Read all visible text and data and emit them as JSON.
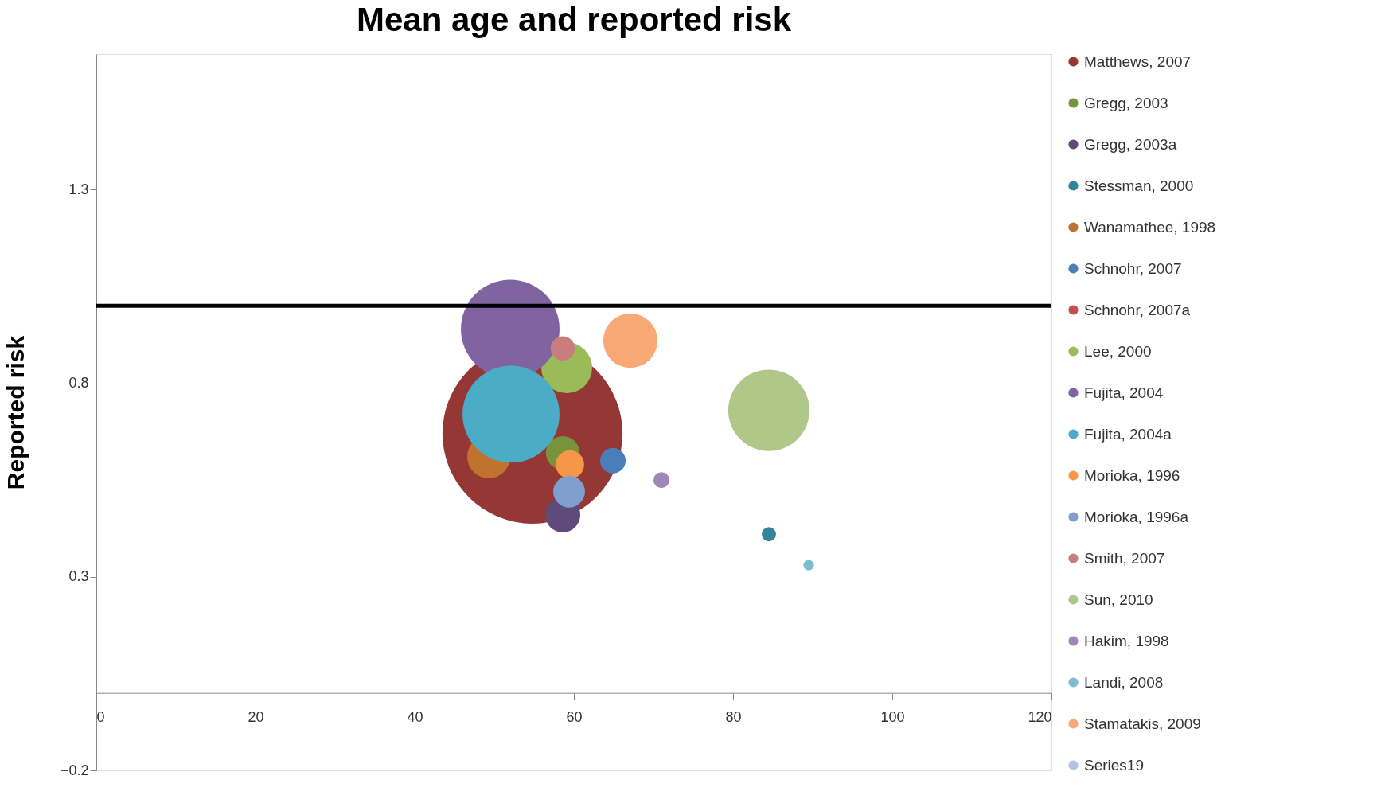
{
  "chart_data": {
    "type": "bubble",
    "title": "Mean age and reported risk",
    "ylabel": "Reported risk",
    "xlim": [
      0,
      120
    ],
    "xticks": [
      0,
      20,
      40,
      60,
      80,
      100,
      120
    ],
    "ylim": [
      -0.2,
      1.65
    ],
    "yticks": [
      -0.2,
      0.3,
      0.8,
      1.3
    ],
    "grid": false,
    "legend": "right",
    "ref_lines": [
      {
        "axis": "y",
        "value": 1.0,
        "color": "#000000"
      }
    ],
    "series": [
      {
        "name": "Matthews, 2007",
        "color": "#953735",
        "x": [
          54.8
        ],
        "values": [
          0.67
        ],
        "sizes": [
          1
        ]
      },
      {
        "name": "Gregg, 2003",
        "color": "#77933c",
        "x": [
          58.6
        ],
        "values": [
          0.62
        ],
        "sizes": [
          0.035
        ]
      },
      {
        "name": "Gregg, 2003a",
        "color": "#604a7b",
        "x": [
          58.6
        ],
        "values": [
          0.46
        ],
        "sizes": [
          0.038
        ]
      },
      {
        "name": "Stessman, 2000",
        "color": "#31859c",
        "x": [
          84.5
        ],
        "values": [
          0.41
        ],
        "sizes": [
          0.0063
        ]
      },
      {
        "name": "Wanamathee, 1998",
        "color": "#c0722f",
        "x": [
          49.3
        ],
        "values": [
          0.61
        ],
        "sizes": [
          0.057
        ]
      },
      {
        "name": "Schnohr, 2007",
        "color": "#4a7ebb",
        "x": [
          64.9
        ],
        "values": [
          0.6
        ],
        "sizes": [
          0.02
        ]
      },
      {
        "name": "Schnohr, 2007a",
        "color": "#c0504d",
        "x": [
          null
        ],
        "values": [
          null
        ],
        "sizes": [
          null
        ]
      },
      {
        "name": "Lee, 2000",
        "color": "#9bbb59",
        "x": [
          59.1
        ],
        "values": [
          0.84
        ],
        "sizes": [
          0.08
        ]
      },
      {
        "name": "Fujita, 2004",
        "color": "#8064a2",
        "x": [
          52.0
        ],
        "values": [
          0.94
        ],
        "sizes": [
          0.3
        ]
      },
      {
        "name": "Fujita, 2004a",
        "color": "#4bacc6",
        "x": [
          52.1
        ],
        "values": [
          0.72
        ],
        "sizes": [
          0.29
        ]
      },
      {
        "name": "Morioka, 1996",
        "color": "#f79646",
        "x": [
          59.5
        ],
        "values": [
          0.59
        ],
        "sizes": [
          0.025
        ]
      },
      {
        "name": "Morioka, 1996a",
        "color": "#7f9fcf",
        "x": [
          59.4
        ],
        "values": [
          0.52
        ],
        "sizes": [
          0.031
        ]
      },
      {
        "name": "Smith, 2007",
        "color": "#c97d7d",
        "x": [
          58.6
        ],
        "values": [
          0.89
        ],
        "sizes": [
          0.018
        ]
      },
      {
        "name": "Sun, 2010",
        "color": "#afc788",
        "x": [
          84.5
        ],
        "values": [
          0.73
        ],
        "sizes": [
          0.204
        ]
      },
      {
        "name": "Hakim, 1998",
        "color": "#9c89b8",
        "x": [
          71.0
        ],
        "values": [
          0.55
        ],
        "sizes": [
          0.0078
        ]
      },
      {
        "name": "Landi, 2008",
        "color": "#7cbdd2",
        "x": [
          89.5
        ],
        "values": [
          0.33
        ],
        "sizes": [
          0.0034
        ]
      },
      {
        "name": "Stamatakis, 2009",
        "color": "#f9a976",
        "x": [
          67.1
        ],
        "values": [
          0.91
        ],
        "sizes": [
          0.091
        ]
      },
      {
        "name": "Series19",
        "color": "#b3c4e0",
        "x": [
          null
        ],
        "values": [
          null
        ],
        "sizes": [
          null
        ]
      }
    ]
  }
}
